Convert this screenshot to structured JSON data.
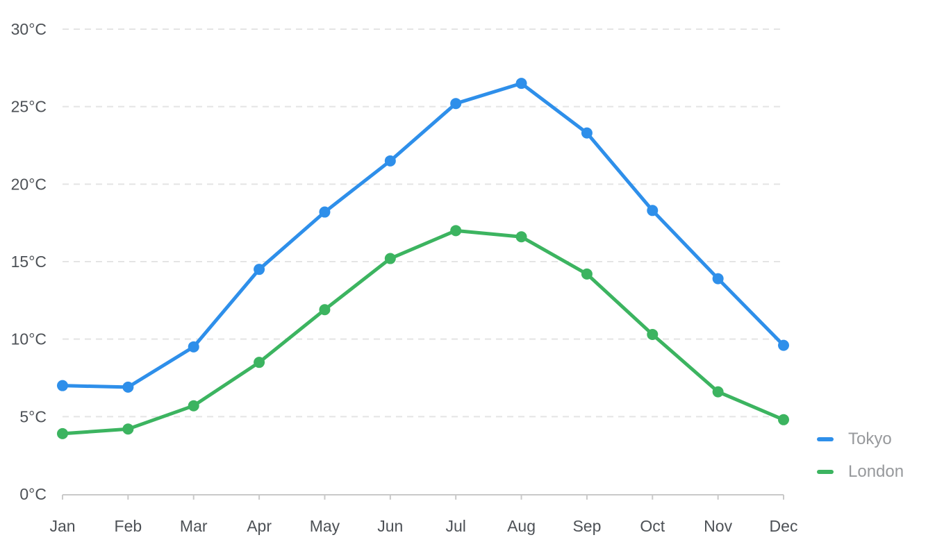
{
  "chart_data": {
    "type": "line",
    "categories": [
      "Jan",
      "Feb",
      "Mar",
      "Apr",
      "May",
      "Jun",
      "Jul",
      "Aug",
      "Sep",
      "Oct",
      "Nov",
      "Dec"
    ],
    "series": [
      {
        "name": "Tokyo",
        "color": "#2E8FEA",
        "values": [
          7.0,
          6.9,
          9.5,
          14.5,
          18.2,
          21.5,
          25.2,
          26.5,
          23.3,
          18.3,
          13.9,
          9.6
        ]
      },
      {
        "name": "London",
        "color": "#3CB460",
        "values": [
          3.9,
          4.2,
          5.7,
          8.5,
          11.9,
          15.2,
          17.0,
          16.6,
          14.2,
          10.3,
          6.6,
          4.8
        ]
      }
    ],
    "title": "",
    "xlabel": "",
    "ylabel": "",
    "ylim": [
      0,
      30
    ],
    "y_ticks": [
      0,
      5,
      10,
      15,
      20,
      25,
      30
    ],
    "y_tick_format": "{v}°C",
    "grid": true,
    "grid_style": "dashed",
    "legend_position": "bottom-right"
  },
  "legend": {
    "items": [
      {
        "label": "Tokyo",
        "color": "#2E8FEA"
      },
      {
        "label": "London",
        "color": "#3CB460"
      }
    ]
  },
  "colors": {
    "background": "#ffffff",
    "grid": "#e4e4e4",
    "axis": "#c9c9c9",
    "axis_text": "#4d5156",
    "legend_text": "#97999c",
    "tokyo": "#2E8FEA",
    "london": "#3CB460"
  }
}
